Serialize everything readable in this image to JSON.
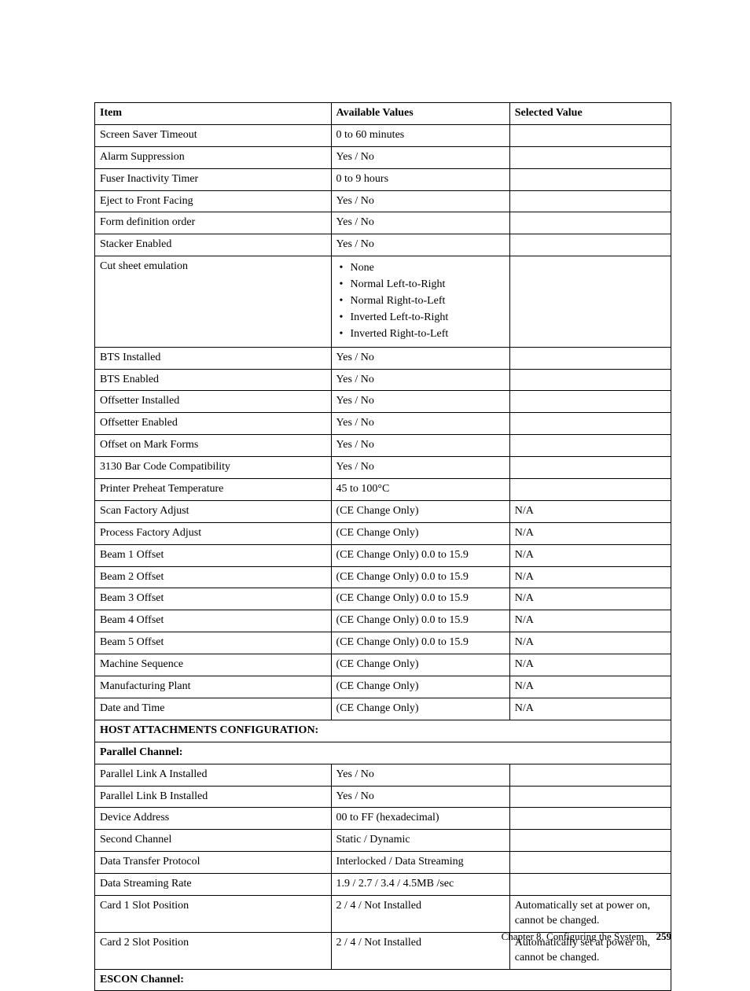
{
  "headers": {
    "item": "Item",
    "available": "Available Values",
    "selected": "Selected Value"
  },
  "rows": [
    {
      "type": "row",
      "item": "Screen Saver Timeout",
      "available": "0 to 60 minutes",
      "selected": ""
    },
    {
      "type": "row",
      "item": "Alarm Suppression",
      "available": "Yes / No",
      "selected": ""
    },
    {
      "type": "row",
      "item": "Fuser Inactivity Timer",
      "available": "0 to 9 hours",
      "selected": ""
    },
    {
      "type": "row",
      "item": "Eject to Front Facing",
      "available": "Yes / No",
      "selected": ""
    },
    {
      "type": "row",
      "item": "Form definition order",
      "available": "Yes / No",
      "selected": ""
    },
    {
      "type": "row",
      "item": "Stacker Enabled",
      "available": "Yes / No",
      "selected": ""
    },
    {
      "type": "list-row",
      "item": "Cut sheet emulation",
      "available_list": [
        "None",
        "Normal Left-to-Right",
        "Normal Right-to-Left",
        "Inverted Left-to-Right",
        "Inverted Right-to-Left"
      ],
      "selected": ""
    },
    {
      "type": "row",
      "item": "BTS Installed",
      "available": "Yes / No",
      "selected": ""
    },
    {
      "type": "row",
      "item": "BTS Enabled",
      "available": "Yes / No",
      "selected": ""
    },
    {
      "type": "row",
      "item": "Offsetter Installed",
      "available": "Yes / No",
      "selected": ""
    },
    {
      "type": "row",
      "item": "Offsetter Enabled",
      "available": "Yes / No",
      "selected": ""
    },
    {
      "type": "row",
      "item": "Offset on Mark Forms",
      "available": "Yes / No",
      "selected": ""
    },
    {
      "type": "row",
      "item": "3130 Bar Code Compatibility",
      "available": "Yes / No",
      "selected": ""
    },
    {
      "type": "row",
      "item": "Printer Preheat Temperature",
      "available": "45 to 100°C",
      "selected": ""
    },
    {
      "type": "row",
      "item": "Scan Factory Adjust",
      "available": "(CE Change Only)",
      "selected": "N/A"
    },
    {
      "type": "row",
      "item": "Process Factory Adjust",
      "available": "(CE Change Only)",
      "selected": "N/A"
    },
    {
      "type": "row",
      "item": "Beam 1 Offset",
      "available": "(CE Change Only) 0.0 to 15.9",
      "selected": "N/A"
    },
    {
      "type": "row",
      "item": "Beam 2 Offset",
      "available": "(CE Change Only) 0.0 to 15.9",
      "selected": "N/A"
    },
    {
      "type": "row",
      "item": "Beam 3 Offset",
      "available": "(CE Change Only) 0.0 to 15.9",
      "selected": "N/A"
    },
    {
      "type": "row",
      "item": "Beam 4 Offset",
      "available": "(CE Change Only) 0.0 to 15.9",
      "selected": "N/A"
    },
    {
      "type": "row",
      "item": "Beam 5 Offset",
      "available": "(CE Change Only) 0.0 to 15.9",
      "selected": "N/A"
    },
    {
      "type": "row",
      "item": "Machine Sequence",
      "available": "(CE Change Only)",
      "selected": "N/A"
    },
    {
      "type": "row",
      "item": "Manufacturing Plant",
      "available": "(CE Change Only)",
      "selected": "N/A"
    },
    {
      "type": "row",
      "item": "Date and Time",
      "available": "(CE Change Only)",
      "selected": "N/A"
    },
    {
      "type": "section",
      "item": "HOST ATTACHMENTS CONFIGURATION:"
    },
    {
      "type": "section",
      "item": "Parallel Channel:"
    },
    {
      "type": "row",
      "item": "Parallel Link A Installed",
      "available": "Yes / No",
      "selected": ""
    },
    {
      "type": "row",
      "item": "Parallel Link B Installed",
      "available": "Yes / No",
      "selected": ""
    },
    {
      "type": "row",
      "item": "Device Address",
      "available": "00 to FF (hexadecimal)",
      "selected": ""
    },
    {
      "type": "row",
      "item": "Second Channel",
      "available": "Static / Dynamic",
      "selected": ""
    },
    {
      "type": "row",
      "item": "Data Transfer Protocol",
      "available": "Interlocked / Data Streaming",
      "selected": ""
    },
    {
      "type": "row",
      "item": "Data Streaming Rate",
      "available": "1.9 / 2.7 / 3.4 / 4.5MB /sec",
      "selected": ""
    },
    {
      "type": "row",
      "item": "Card 1 Slot Position",
      "available": "2 / 4 / Not Installed",
      "selected": "Automatically set at power on, cannot be changed."
    },
    {
      "type": "row",
      "item": "Card 2 Slot Position",
      "available": "2 / 4 / Not Installed",
      "selected": "Automatically set at power on, cannot be changed."
    },
    {
      "type": "section",
      "item": "ESCON Channel:"
    }
  ],
  "footer": {
    "chapter": "Chapter 8. Configuring the System",
    "page": "259"
  }
}
